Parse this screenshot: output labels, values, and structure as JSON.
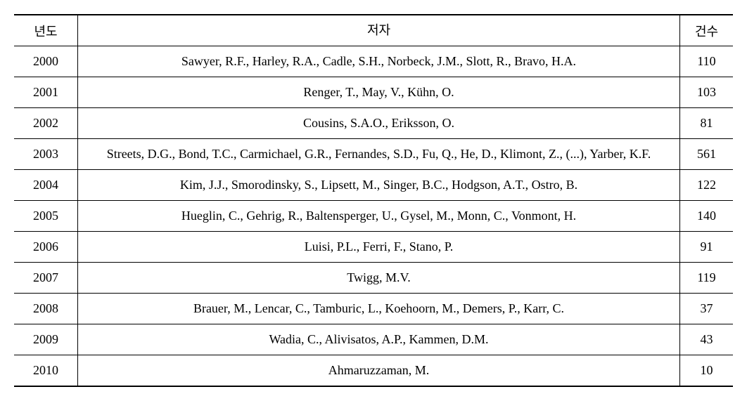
{
  "table": {
    "columns": {
      "year": "년도",
      "author": "저자",
      "count": "건수"
    },
    "rows": [
      {
        "year": "2000",
        "author": "Sawyer, R.F., Harley, R.A., Cadle, S.H., Norbeck, J.M., Slott, R., Bravo, H.A.",
        "count": "110"
      },
      {
        "year": "2001",
        "author": "Renger, T., May, V., Kühn, O.",
        "count": "103"
      },
      {
        "year": "2002",
        "author": "Cousins, S.A.O., Eriksson, O.",
        "count": "81"
      },
      {
        "year": "2003",
        "author": "Streets, D.G., Bond, T.C., Carmichael, G.R., Fernandes, S.D., Fu, Q., He, D., Klimont, Z., (...), Yarber, K.F.",
        "count": "561"
      },
      {
        "year": "2004",
        "author": "Kim, J.J.,  Smorodinsky, S., Lipsett, M., Singer, B.C., Hodgson, A.T., Ostro, B.",
        "count": "122"
      },
      {
        "year": "2005",
        "author": "Hueglin, C., Gehrig,  R., Baltensperger, U., Gysel, M., Monn, C., Vonmont, H.",
        "count": "140"
      },
      {
        "year": "2006",
        "author": "Luisi, P.L., Ferri,  F., Stano, P.",
        "count": "91"
      },
      {
        "year": "2007",
        "author": "Twigg, M.V.",
        "count": "119"
      },
      {
        "year": "2008",
        "author": "Brauer, M., Lencar,  C., Tamburic, L., Koehoorn, M., Demers, P., Karr, C.",
        "count": "37"
      },
      {
        "year": "2009",
        "author": "Wadia, C.,  Alivisatos, A.P., Kammen, D.M.",
        "count": "43"
      },
      {
        "year": "2010",
        "author": "Ahmaruzzaman, M.",
        "count": "10"
      }
    ],
    "styling": {
      "border_top_width": 2,
      "border_bottom_width": 2,
      "border_inner_width": 1,
      "border_color": "#000000",
      "background_color": "#ffffff",
      "font_family": "Times New Roman",
      "font_size": 18,
      "col_year_width": 70,
      "col_count_width": 55,
      "year_align": "center",
      "author_align": "center",
      "count_align": "center",
      "cell_padding": "8px 10px"
    }
  }
}
